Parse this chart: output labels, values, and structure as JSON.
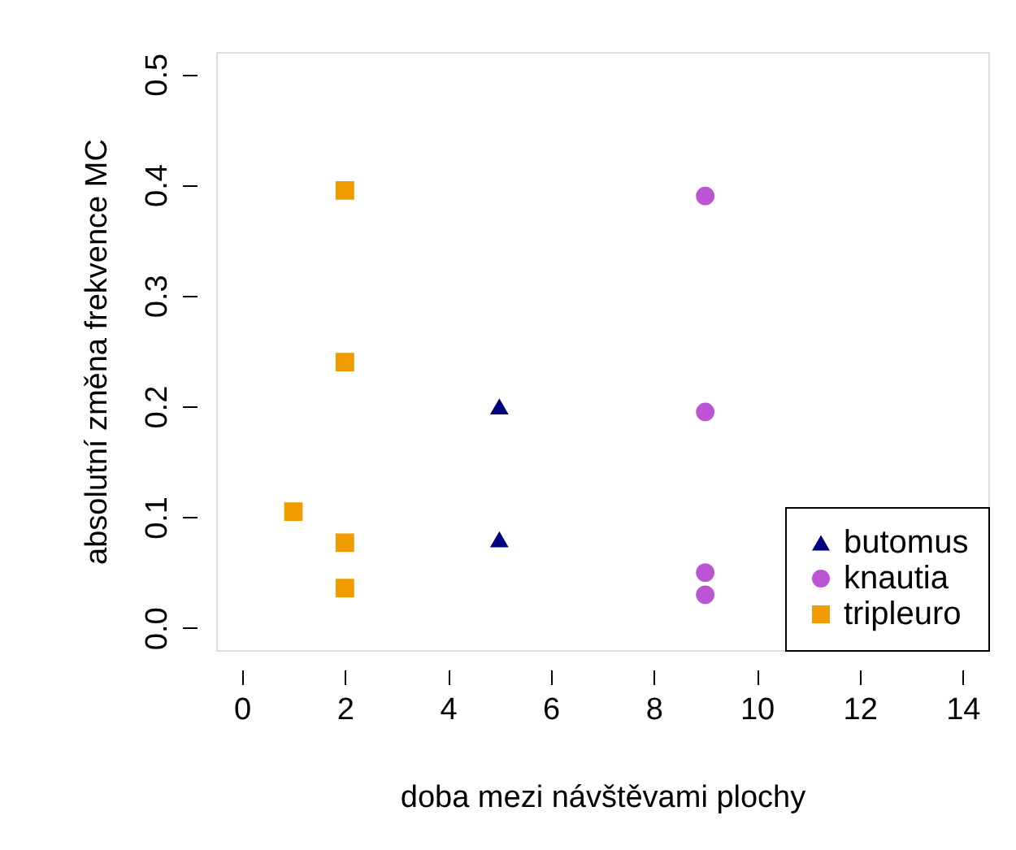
{
  "chart_data": {
    "type": "scatter",
    "xlabel": "doba mezi návštěvami plochy",
    "ylabel": "absolutní změna frekvence MC",
    "xlim": [
      -0.5,
      14.5
    ],
    "ylim": [
      -0.02,
      0.52
    ],
    "xticks": [
      0,
      2,
      4,
      6,
      8,
      10,
      12,
      14
    ],
    "yticks": [
      {
        "value": 0,
        "label": "0.0"
      },
      {
        "value": 0.1,
        "label": "0.1"
      },
      {
        "value": 0.2,
        "label": "0.2"
      },
      {
        "value": 0.3,
        "label": "0.3"
      },
      {
        "value": 0.4,
        "label": "0.4"
      },
      {
        "value": 0.5,
        "label": "0.5"
      }
    ],
    "grid": false,
    "legend": "bottom right",
    "series": [
      {
        "name": "butomus",
        "color": "#000080",
        "marker": "triangle",
        "x": [
          5,
          5
        ],
        "values": [
          0.2,
          0.08
        ]
      },
      {
        "name": "knautia",
        "color": "#bb55d3",
        "marker": "circle",
        "x": [
          9,
          9,
          9,
          9
        ],
        "values": [
          0.39,
          0.195,
          0.05,
          0.03
        ]
      },
      {
        "name": "tripleuro",
        "color": "#f09b00",
        "marker": "square",
        "x": [
          2,
          2,
          1,
          2,
          2
        ],
        "values": [
          0.395,
          0.24,
          0.105,
          0.077,
          0.036
        ]
      }
    ]
  }
}
